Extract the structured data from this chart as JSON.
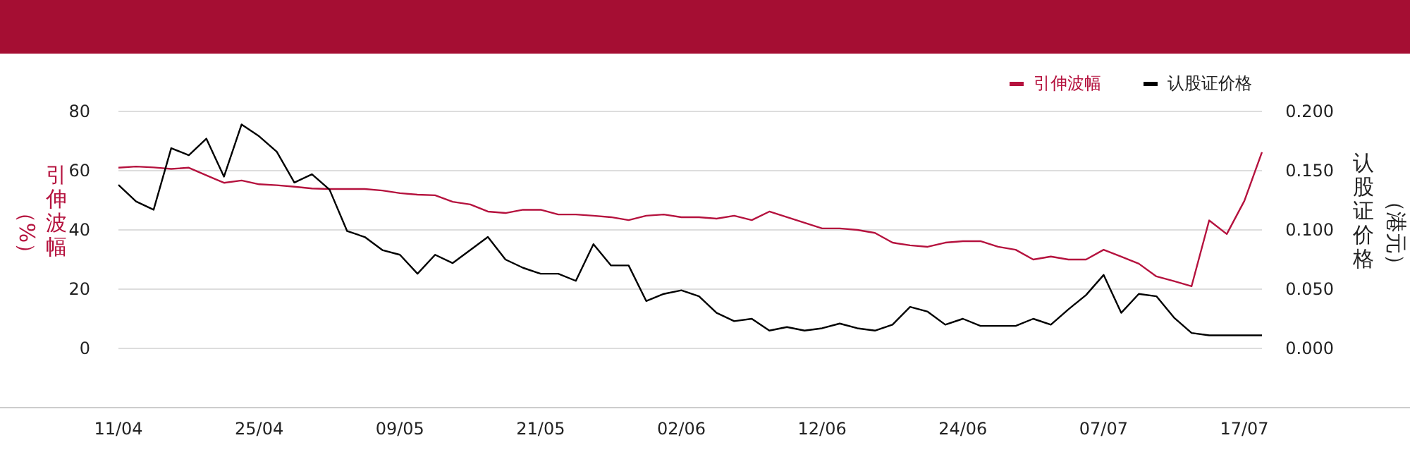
{
  "chart_data": {
    "type": "line",
    "ylabel": "引伸波幅（%）",
    "y2label": "认股证价格（港元）",
    "categories": [
      "11/04",
      null,
      null,
      null,
      null,
      null,
      null,
      null,
      "25/04",
      null,
      null,
      null,
      null,
      null,
      null,
      null,
      "09/05",
      null,
      null,
      null,
      null,
      null,
      null,
      null,
      "21/05",
      null,
      null,
      null,
      null,
      null,
      null,
      null,
      "02/06",
      null,
      null,
      null,
      null,
      null,
      null,
      null,
      "12/06",
      null,
      null,
      null,
      null,
      null,
      null,
      null,
      "24/06",
      null,
      null,
      null,
      null,
      null,
      null,
      null,
      "07/07",
      null,
      null,
      null,
      null,
      null,
      null,
      null,
      "17/07",
      null
    ],
    "ylim": [
      -20,
      80
    ],
    "yticks": [
      0,
      20,
      40,
      60,
      80
    ],
    "y2lim": [
      -0.05,
      0.2
    ],
    "y2ticks": [
      {
        "value": 0,
        "label": "0.000"
      },
      {
        "value": 0.05,
        "label": "0.050"
      },
      {
        "value": 0.1,
        "label": "0.100"
      },
      {
        "value": 0.15,
        "label": "0.150"
      },
      {
        "value": 0.2,
        "label": "0.200"
      }
    ],
    "grid": "y",
    "legend": "top right",
    "marker": "none",
    "line_style": "solid",
    "series": [
      {
        "name": "引伸波幅",
        "color": "#b5123e",
        "values": [
          61.0,
          61.4,
          61.1,
          60.6,
          61.0,
          58.4,
          55.9,
          56.7,
          55.4,
          55.1,
          54.6,
          54.0,
          53.8,
          53.8,
          53.8,
          53.3,
          52.4,
          51.9,
          51.7,
          49.5,
          48.6,
          46.2,
          45.7,
          46.8,
          46.8,
          45.2,
          45.2,
          44.8,
          44.3,
          43.3,
          44.8,
          45.2,
          44.3,
          44.3,
          43.8,
          44.8,
          43.3,
          46.2,
          44.3,
          42.4,
          40.5,
          40.5,
          40.0,
          39.0,
          35.7,
          34.8,
          34.3,
          35.7,
          36.2,
          36.2,
          34.3,
          33.3,
          30.0,
          31.0,
          30.0,
          30.0,
          33.3,
          31.0,
          28.6,
          24.3,
          22.7,
          21.0,
          43.2,
          38.6,
          49.8,
          66.2
        ]
      },
      {
        "name": "认股证价格",
        "color": "#000000",
        "axis": "y2",
        "values": [
          0.138,
          0.124,
          0.117,
          0.169,
          0.163,
          0.177,
          0.145,
          0.189,
          0.179,
          0.166,
          0.14,
          0.147,
          0.134,
          0.099,
          0.094,
          0.083,
          0.079,
          0.063,
          0.079,
          0.072,
          0.083,
          0.094,
          0.075,
          0.068,
          0.063,
          0.063,
          0.057,
          0.088,
          0.07,
          0.07,
          0.04,
          0.046,
          0.049,
          0.044,
          0.03,
          0.023,
          0.025,
          0.015,
          0.018,
          0.015,
          0.017,
          0.021,
          0.017,
          0.015,
          0.02,
          0.035,
          0.031,
          0.02,
          0.025,
          0.019,
          0.019,
          0.019,
          0.025,
          0.02,
          0.033,
          0.045,
          0.062,
          0.03,
          0.046,
          0.044,
          0.026,
          0.013,
          0.011,
          0.011,
          0.011,
          0.011
        ]
      }
    ]
  }
}
